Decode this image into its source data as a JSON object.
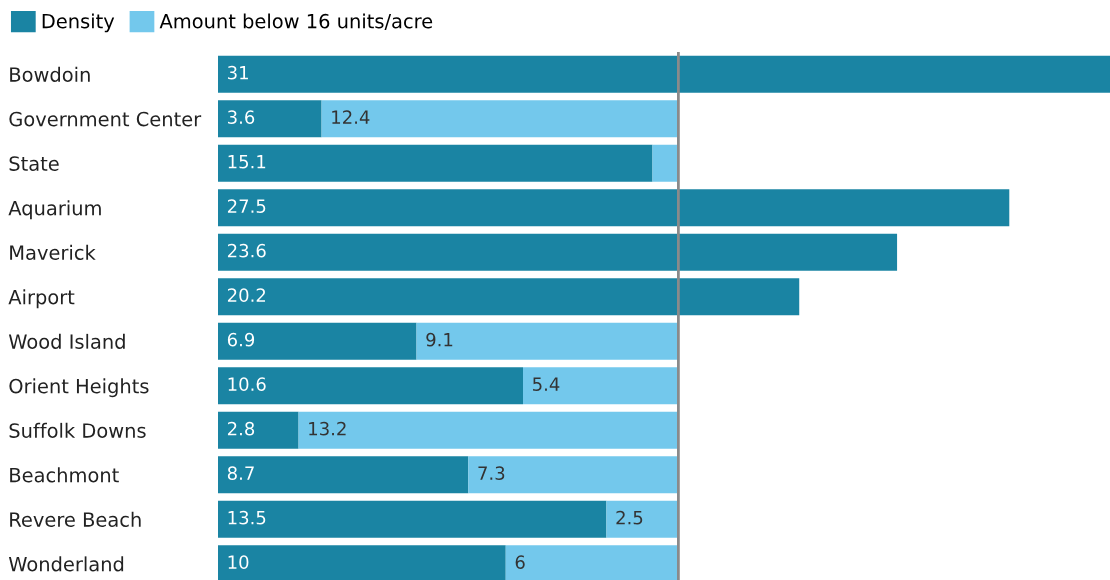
{
  "chart_data": {
    "type": "bar",
    "orientation": "horizontal",
    "stacked": true,
    "categories": [
      "Bowdoin",
      "Government Center",
      "State",
      "Aquarium",
      "Maverick",
      "Airport",
      "Wood Island",
      "Orient Heights",
      "Suffolk Downs",
      "Beachmont",
      "Revere Beach",
      "Wonderland"
    ],
    "series": [
      {
        "name": "Density",
        "color": "#1a84a3",
        "values": [
          31,
          3.6,
          15.1,
          27.5,
          23.6,
          20.2,
          6.9,
          10.6,
          2.8,
          8.7,
          13.5,
          10
        ],
        "value_labels": [
          "31",
          "3.6",
          "15.1",
          "27.5",
          "23.6",
          "20.2",
          "6.9",
          "10.6",
          "2.8",
          "8.7",
          "13.5",
          "10"
        ]
      },
      {
        "name": "Amount below 16 units/acre",
        "color": "#73c8ec",
        "values": [
          null,
          12.4,
          0.9,
          null,
          null,
          null,
          9.1,
          5.4,
          13.2,
          7.3,
          2.5,
          6
        ],
        "value_labels": [
          null,
          "12.4",
          null,
          null,
          null,
          null,
          "9.1",
          "5.4",
          "13.2",
          "7.3",
          "2.5",
          "6"
        ]
      }
    ],
    "xlim": [
      0,
      31
    ],
    "ref_lines": [
      {
        "axis": "x",
        "value": 16,
        "color": "#8a8a8a"
      }
    ],
    "legend": "top left",
    "grid": false,
    "tick_labels": "y"
  }
}
